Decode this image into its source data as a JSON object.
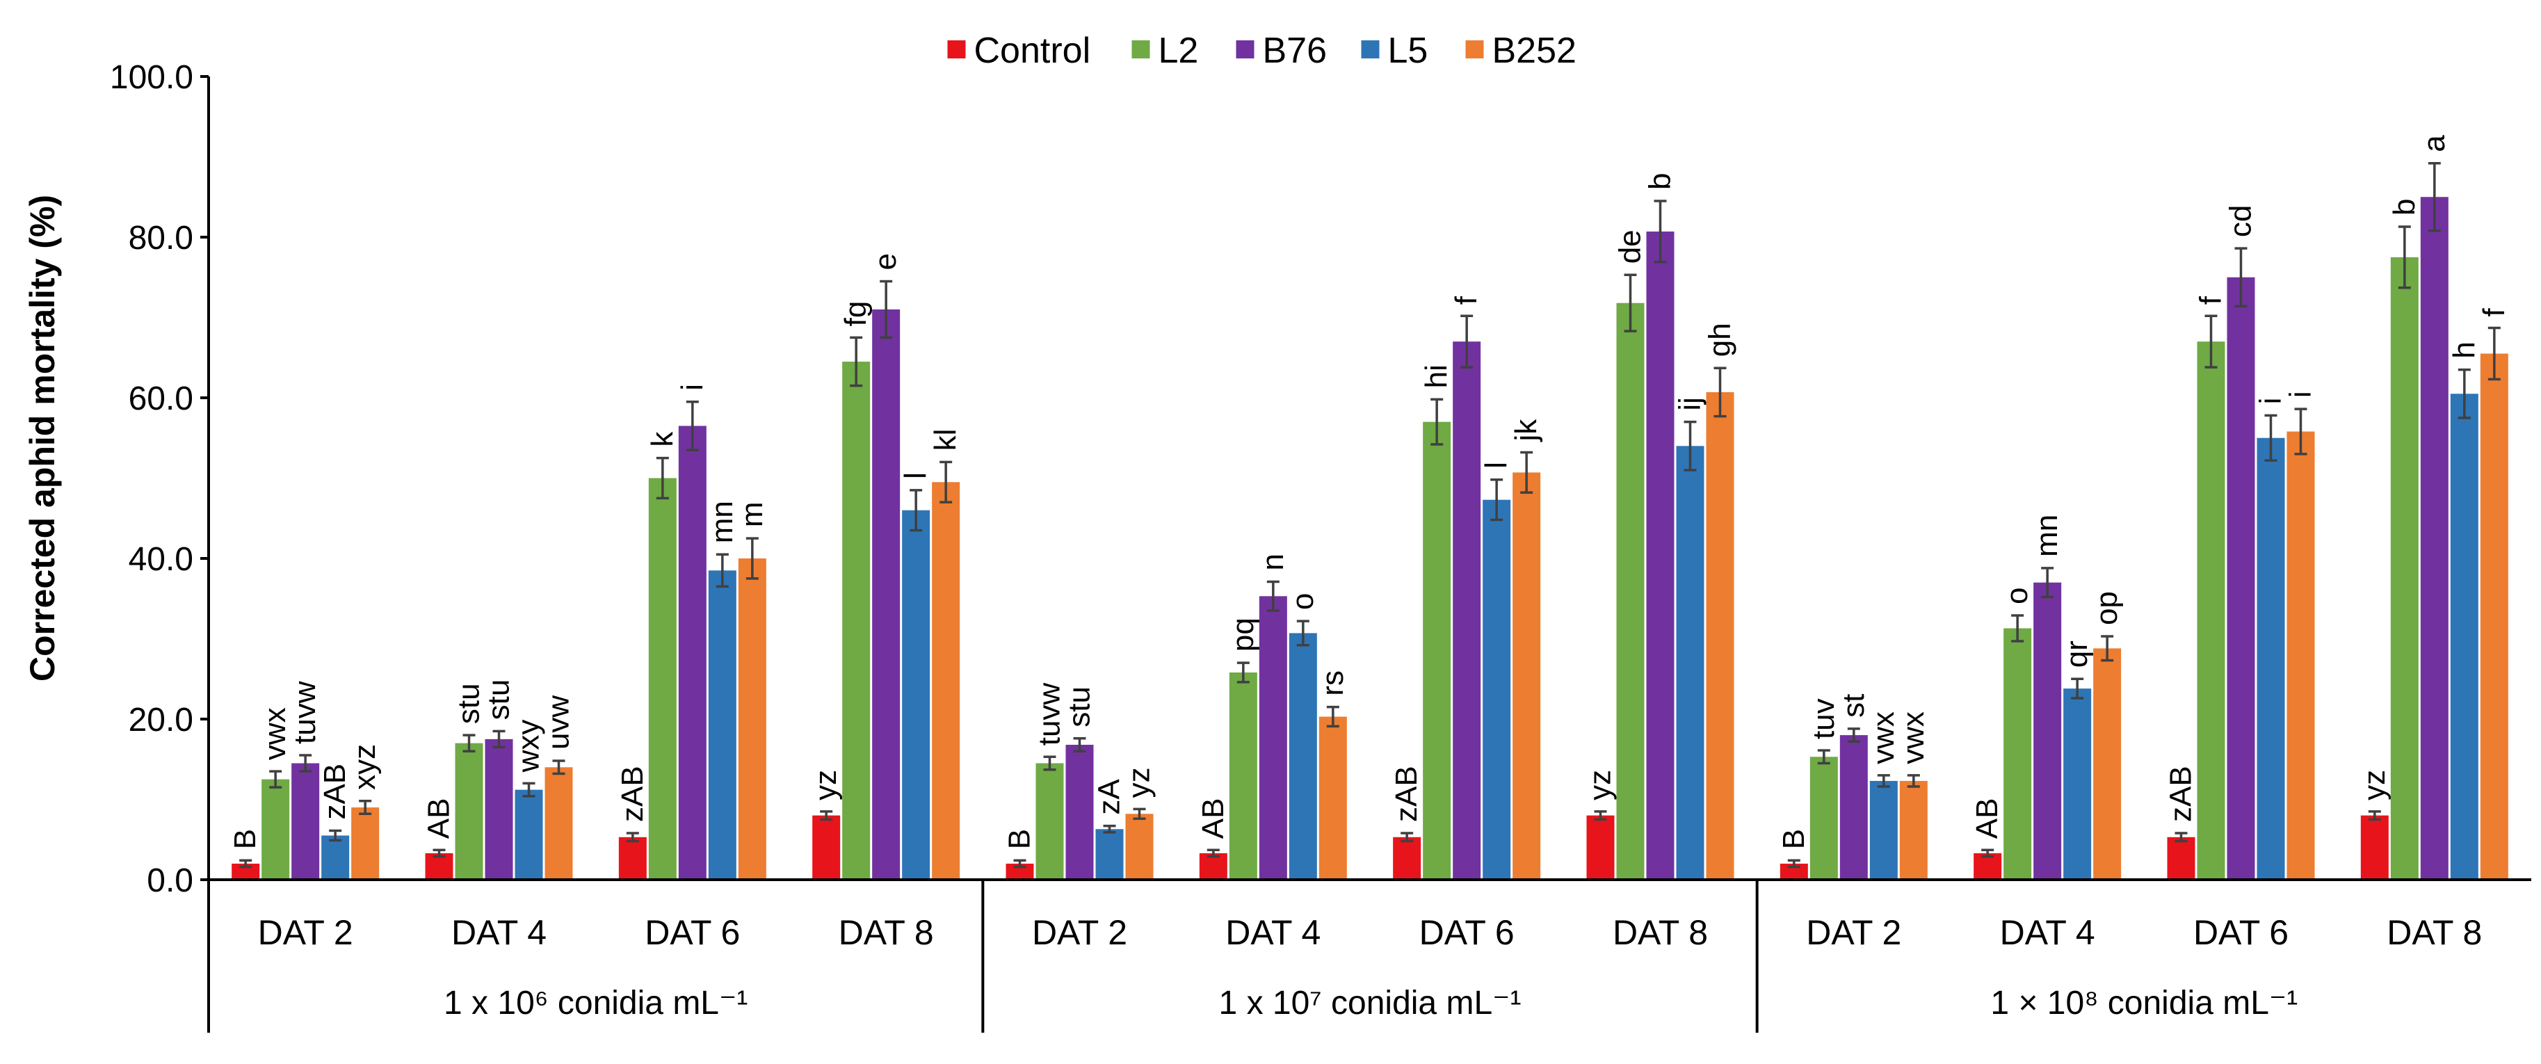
{
  "chart_data": {
    "type": "bar",
    "title": "",
    "ylabel": "Corrected aphid mortality (%)",
    "xlabel": "",
    "ylim": [
      0,
      100
    ],
    "yticks": [
      "0.0",
      "20.0",
      "40.0",
      "60.0",
      "80.0",
      "100.0"
    ],
    "ytick_values": [
      0,
      20,
      40,
      60,
      80,
      100
    ],
    "grid": false,
    "legend_position": "top-center",
    "series": [
      {
        "name": "Control",
        "color": "#e8141b"
      },
      {
        "name": "L2",
        "color": "#6faa44"
      },
      {
        "name": "B76",
        "color": "#7132a0"
      },
      {
        "name": "L5",
        "color": "#2e75b6"
      },
      {
        "name": "B252",
        "color": "#ed7d31"
      }
    ],
    "groups": [
      {
        "label": "1 x 10⁶ conidia mL⁻¹",
        "days": [
          {
            "label": "DAT 2",
            "values": [
              2.0,
              12.5,
              14.5,
              5.5,
              9.0
            ],
            "errors": [
              0.4,
              1.0,
              1.0,
              0.6,
              0.8
            ],
            "letters": [
              "B",
              "vwx",
              "tuvw",
              "zAB",
              "xyz"
            ]
          },
          {
            "label": "DAT 4",
            "values": [
              3.3,
              17.0,
              17.5,
              11.2,
              14.0
            ],
            "errors": [
              0.4,
              1.0,
              1.0,
              0.8,
              0.8
            ],
            "letters": [
              "AB",
              "stu",
              "stu",
              "wxy",
              "uvw"
            ]
          },
          {
            "label": "DAT 6",
            "values": [
              5.3,
              50.0,
              56.5,
              38.5,
              40.0
            ],
            "errors": [
              0.5,
              2.5,
              3.0,
              2.0,
              2.5
            ],
            "letters": [
              "zAB",
              "k",
              "i",
              "mn",
              "m"
            ]
          },
          {
            "label": "DAT 8",
            "values": [
              8.0,
              64.5,
              71.0,
              46.0,
              49.5
            ],
            "errors": [
              0.5,
              3.0,
              3.5,
              2.5,
              2.5
            ],
            "letters": [
              "yz",
              "fg",
              "e",
              "l",
              "kl"
            ]
          }
        ]
      },
      {
        "label": "1 x 10⁷ conidia mL⁻¹",
        "days": [
          {
            "label": "DAT 2",
            "values": [
              2.0,
              14.5,
              16.8,
              6.3,
              8.2
            ],
            "errors": [
              0.4,
              0.8,
              0.8,
              0.4,
              0.6
            ],
            "letters": [
              "B",
              "tuvw",
              "stu",
              "zA",
              "yz"
            ]
          },
          {
            "label": "DAT 4",
            "values": [
              3.3,
              25.8,
              35.3,
              30.7,
              20.3
            ],
            "errors": [
              0.4,
              1.2,
              1.8,
              1.5,
              1.2
            ],
            "letters": [
              "AB",
              "pq",
              "n",
              "o",
              "rs"
            ]
          },
          {
            "label": "DAT 6",
            "values": [
              5.3,
              57.0,
              67.0,
              47.3,
              50.7
            ],
            "errors": [
              0.5,
              2.8,
              3.2,
              2.5,
              2.5
            ],
            "letters": [
              "zAB",
              "hi",
              "f",
              "l",
              "jk"
            ]
          },
          {
            "label": "DAT 8",
            "values": [
              8.0,
              71.8,
              80.7,
              54.0,
              60.7
            ],
            "errors": [
              0.5,
              3.5,
              3.8,
              3.0,
              3.0
            ],
            "letters": [
              "yz",
              "de",
              "b",
              "ij",
              "gh"
            ]
          }
        ]
      },
      {
        "label": "1 × 10⁸  conidia mL⁻¹",
        "days": [
          {
            "label": "DAT 2",
            "values": [
              2.0,
              15.3,
              18.0,
              12.3,
              12.3
            ],
            "errors": [
              0.4,
              0.8,
              0.8,
              0.7,
              0.7
            ],
            "letters": [
              "B",
              "tuv",
              "st",
              "vwx",
              "vwx"
            ]
          },
          {
            "label": "DAT 4",
            "values": [
              3.3,
              31.3,
              37.0,
              23.8,
              28.8
            ],
            "errors": [
              0.4,
              1.6,
              1.8,
              1.2,
              1.5
            ],
            "letters": [
              "AB",
              "o",
              "mn",
              "qr",
              "op"
            ]
          },
          {
            "label": "DAT 6",
            "values": [
              5.3,
              67.0,
              75.0,
              55.0,
              55.8
            ],
            "errors": [
              0.5,
              3.2,
              3.6,
              2.8,
              2.8
            ],
            "letters": [
              "zAB",
              "f",
              "cd",
              "i",
              "i"
            ]
          },
          {
            "label": "DAT 8",
            "values": [
              8.0,
              77.5,
              85.0,
              60.5,
              65.5
            ],
            "errors": [
              0.5,
              3.8,
              4.2,
              3.0,
              3.2
            ],
            "letters": [
              "yz",
              "b",
              "a",
              "h",
              "f"
            ]
          }
        ]
      }
    ]
  }
}
